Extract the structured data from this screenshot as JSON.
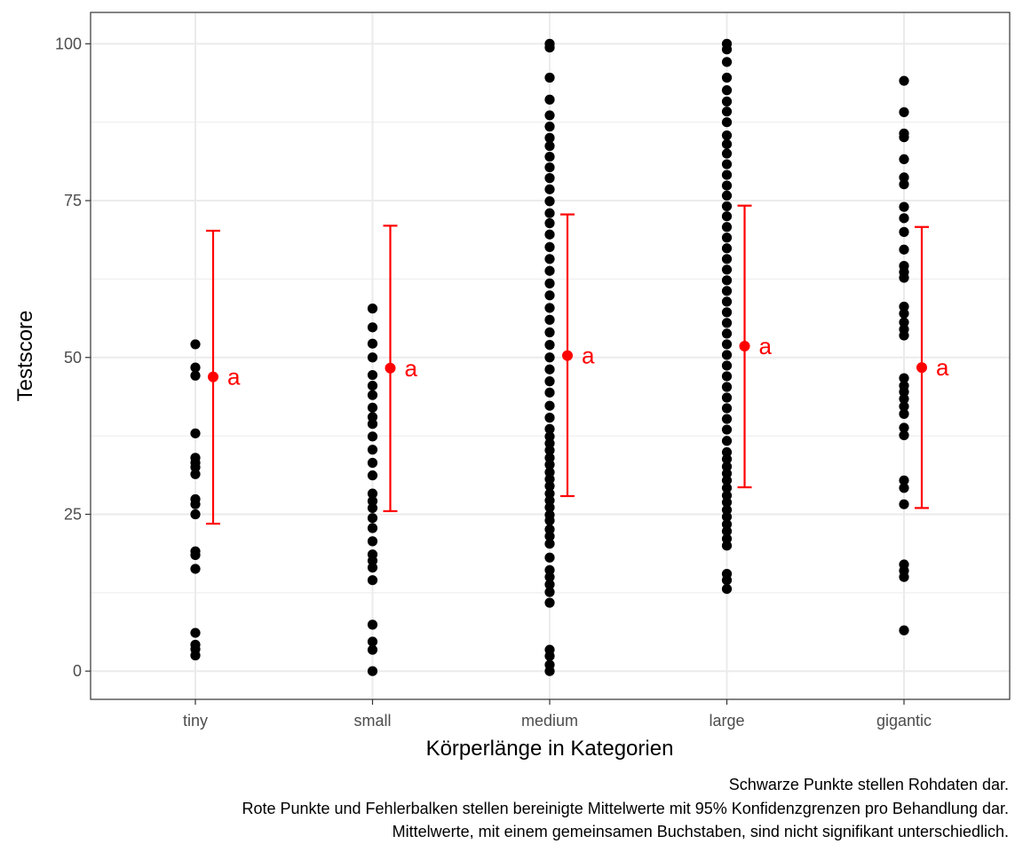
{
  "chart_data": {
    "type": "scatter",
    "xlabel": "Körperlänge in Kategorien",
    "ylabel": "Testscore",
    "ylim": [
      -4.5,
      105
    ],
    "yticks": [
      0,
      25,
      50,
      75,
      100
    ],
    "grid": true,
    "categories": [
      "tiny",
      "small",
      "medium",
      "large",
      "gigantic"
    ],
    "raw_points_color": "#000000",
    "mean_color": "#ff0000",
    "raw": [
      [
        2.5,
        3.5,
        4.2,
        6.1,
        16.3,
        18.5,
        19.1,
        25.0,
        26.6,
        27.4,
        31.4,
        32.5,
        33.2,
        34.0,
        37.9,
        47.1,
        48.4,
        52.1
      ],
      [
        0.0,
        3.4,
        4.7,
        7.4,
        14.5,
        16.5,
        17.6,
        18.6,
        20.7,
        22.8,
        24.4,
        26.0,
        27.1,
        28.3,
        31.2,
        33.2,
        35.3,
        37.4,
        39.4,
        40.5,
        42.0,
        44.0,
        45.5,
        47.2,
        50.0,
        52.2,
        54.8,
        57.8
      ],
      [
        0.0,
        1.0,
        2.4,
        3.4,
        10.9,
        12.6,
        13.8,
        15.0,
        16.1,
        18.1,
        20.3,
        21.5,
        22.6,
        24.0,
        24.9,
        26.1,
        27.2,
        28.3,
        29.5,
        30.6,
        31.7,
        32.9,
        34.0,
        35.2,
        36.3,
        37.4,
        38.6,
        40.4,
        42.3,
        44.4,
        46.2,
        48.1,
        50.0,
        52.0,
        54.0,
        56.0,
        57.9,
        59.9,
        61.8,
        63.8,
        65.7,
        67.6,
        69.6,
        71.4,
        73.0,
        74.9,
        76.8,
        78.6,
        80.3,
        82.0,
        83.7,
        85.0,
        86.8,
        88.6,
        91.1,
        94.6,
        99.4,
        100.0
      ],
      [
        13.1,
        14.5,
        15.5,
        20.0,
        21.1,
        22.3,
        23.4,
        24.6,
        25.7,
        26.9,
        28.0,
        29.2,
        30.4,
        31.5,
        32.6,
        33.8,
        34.9,
        36.7,
        38.5,
        40.2,
        41.9,
        43.6,
        45.3,
        47.0,
        48.7,
        50.4,
        52.1,
        53.8,
        55.5,
        57.2,
        58.9,
        60.6,
        62.3,
        64.0,
        65.7,
        67.4,
        69.1,
        70.8,
        72.5,
        74.1,
        75.8,
        77.4,
        79.1,
        80.8,
        82.5,
        84.0,
        85.4,
        87.5,
        89.2,
        90.8,
        92.6,
        94.6,
        97.1,
        99.1,
        100.0
      ],
      [
        6.5,
        15.0,
        16.0,
        17.0,
        26.6,
        29.2,
        30.4,
        37.6,
        38.8,
        41.0,
        42.2,
        43.4,
        44.5,
        45.5,
        46.7,
        53.5,
        54.5,
        55.6,
        57.0,
        58.1,
        62.7,
        63.6,
        64.6,
        67.2,
        70.0,
        72.2,
        74.0,
        77.6,
        78.7,
        81.6,
        85.1,
        85.7,
        89.1,
        94.1
      ]
    ],
    "means": [
      46.9,
      48.3,
      50.3,
      51.8,
      48.4
    ],
    "ci_lower": [
      23.5,
      25.5,
      27.9,
      29.3,
      26.0
    ],
    "ci_upper": [
      70.2,
      71.0,
      72.8,
      74.2,
      70.8
    ],
    "letters": [
      "a",
      "a",
      "a",
      "a",
      "a"
    ],
    "caption": [
      "Schwarze Punkte stellen Rohdaten dar.",
      "Rote Punkte und Fehlerbalken stellen bereinigte Mittelwerte mit 95% Konfidenzgrenzen pro Behandlung dar.",
      "Mittelwerte, mit einem gemeinsamen Buchstaben, sind nicht signifikant unterschiedlich."
    ]
  }
}
